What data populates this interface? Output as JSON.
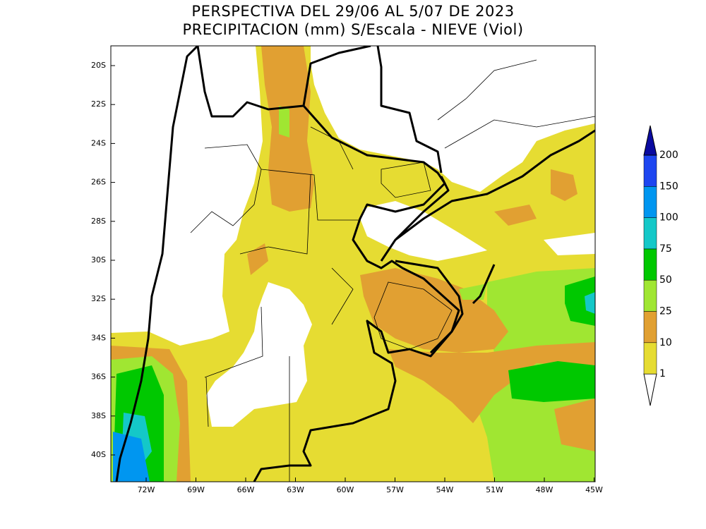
{
  "header": {
    "title": [
      "PERSPECTIVA DEL 29/06 AL 5/07 DE 2023",
      "PRECIPITACION (mm) S/Escala - NIEVE (Viol)"
    ]
  },
  "map": {
    "latitude_labels": [
      "20S",
      "22S",
      "24S",
      "26S",
      "28S",
      "30S",
      "32S",
      "34S",
      "36S",
      "38S",
      "40S"
    ],
    "longitude_labels": [
      "72W",
      "69W",
      "66W",
      "63W",
      "60W",
      "57W",
      "54W",
      "51W",
      "48W",
      "45W"
    ]
  },
  "legend": {
    "levels": [
      1,
      10,
      25,
      50,
      75,
      100,
      150,
      200
    ],
    "colors": [
      "#e6dc32",
      "#e1a032",
      "#a0e632",
      "#00c800",
      "#14c8c8",
      "#0096f0",
      "#1e46f0",
      "#0a0aa0"
    ]
  }
}
